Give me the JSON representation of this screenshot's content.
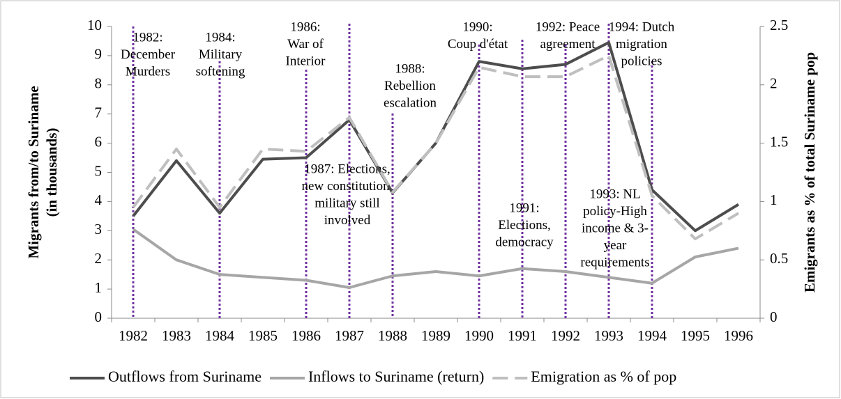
{
  "chart_data": {
    "type": "line",
    "ylabel": [
      "Migrants from/to Suriname",
      "(in thousands)"
    ],
    "y2label": "Emigrants as % of total Suriname pop",
    "categories": [
      "1982",
      "1983",
      "1984",
      "1985",
      "1986",
      "1987",
      "1988",
      "1989",
      "1990",
      "1991",
      "1992",
      "1993",
      "1994",
      "1995",
      "1996"
    ],
    "series": [
      {
        "name": "Outflows from Suriname",
        "color": "#4d4d4d",
        "dash": false,
        "values": [
          3.5,
          5.4,
          3.6,
          5.45,
          5.5,
          6.8,
          4.3,
          6.0,
          8.8,
          8.55,
          8.7,
          9.45,
          4.4,
          3.0,
          3.9
        ]
      },
      {
        "name": "Inflows to Suriname (return)",
        "color": "#a6a6a6",
        "dash": false,
        "values": [
          3.05,
          2.0,
          1.5,
          1.4,
          1.3,
          1.05,
          1.45,
          1.6,
          1.45,
          1.7,
          1.6,
          1.4,
          1.2,
          2.1,
          2.4
        ]
      },
      {
        "name": "Emigration as % of pop",
        "color": "#bfbfbf",
        "dash": true,
        "axis": "y2",
        "values": [
          0.95,
          1.45,
          0.95,
          1.45,
          1.43,
          1.72,
          1.08,
          1.5,
          2.15,
          2.07,
          2.07,
          2.25,
          1.05,
          0.68,
          0.9
        ]
      }
    ],
    "ylim": [
      0,
      10
    ],
    "yticks": [
      0,
      1,
      2,
      3,
      4,
      5,
      6,
      7,
      8,
      9,
      10
    ],
    "y2lim": [
      0,
      2.5
    ],
    "y2ticks": [
      0,
      0.5,
      1,
      1.5,
      2,
      2.5
    ],
    "annotation_color": "#7030a0",
    "annotations": [
      [
        "1982:",
        "December",
        "Murders"
      ],
      [
        "1984:",
        "Military",
        "softening"
      ],
      [
        "1986:",
        "War of",
        "Interior"
      ],
      [
        "1987: Elections,",
        "new constitution,",
        "military still",
        "involved"
      ],
      [
        "1988:",
        "Rebellion",
        "escalation"
      ],
      [
        "1990:",
        "Coup d'état"
      ],
      [
        "1991:",
        "Elections,",
        "democracy"
      ],
      [
        "1992: Peace",
        "agreement"
      ],
      [
        "1993: NL",
        "policy-High",
        "income & 3-",
        "year",
        "requirements"
      ],
      [
        "1994: Dutch",
        "migration",
        "policies"
      ]
    ]
  }
}
